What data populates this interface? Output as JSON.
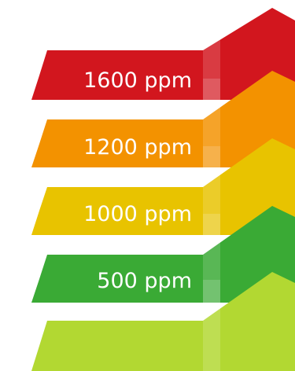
{
  "levels": [
    {
      "label": "1600 ppm",
      "color": "#d2161e"
    },
    {
      "label": "1200 ppm",
      "color": "#f39200"
    },
    {
      "label": "1000 ppm",
      "color": "#e8c300"
    },
    {
      "label": "500 ppm",
      "color": "#3aaa35"
    },
    {
      "label": "",
      "color": "#b2d832"
    }
  ],
  "text_color": "#ffffff"
}
